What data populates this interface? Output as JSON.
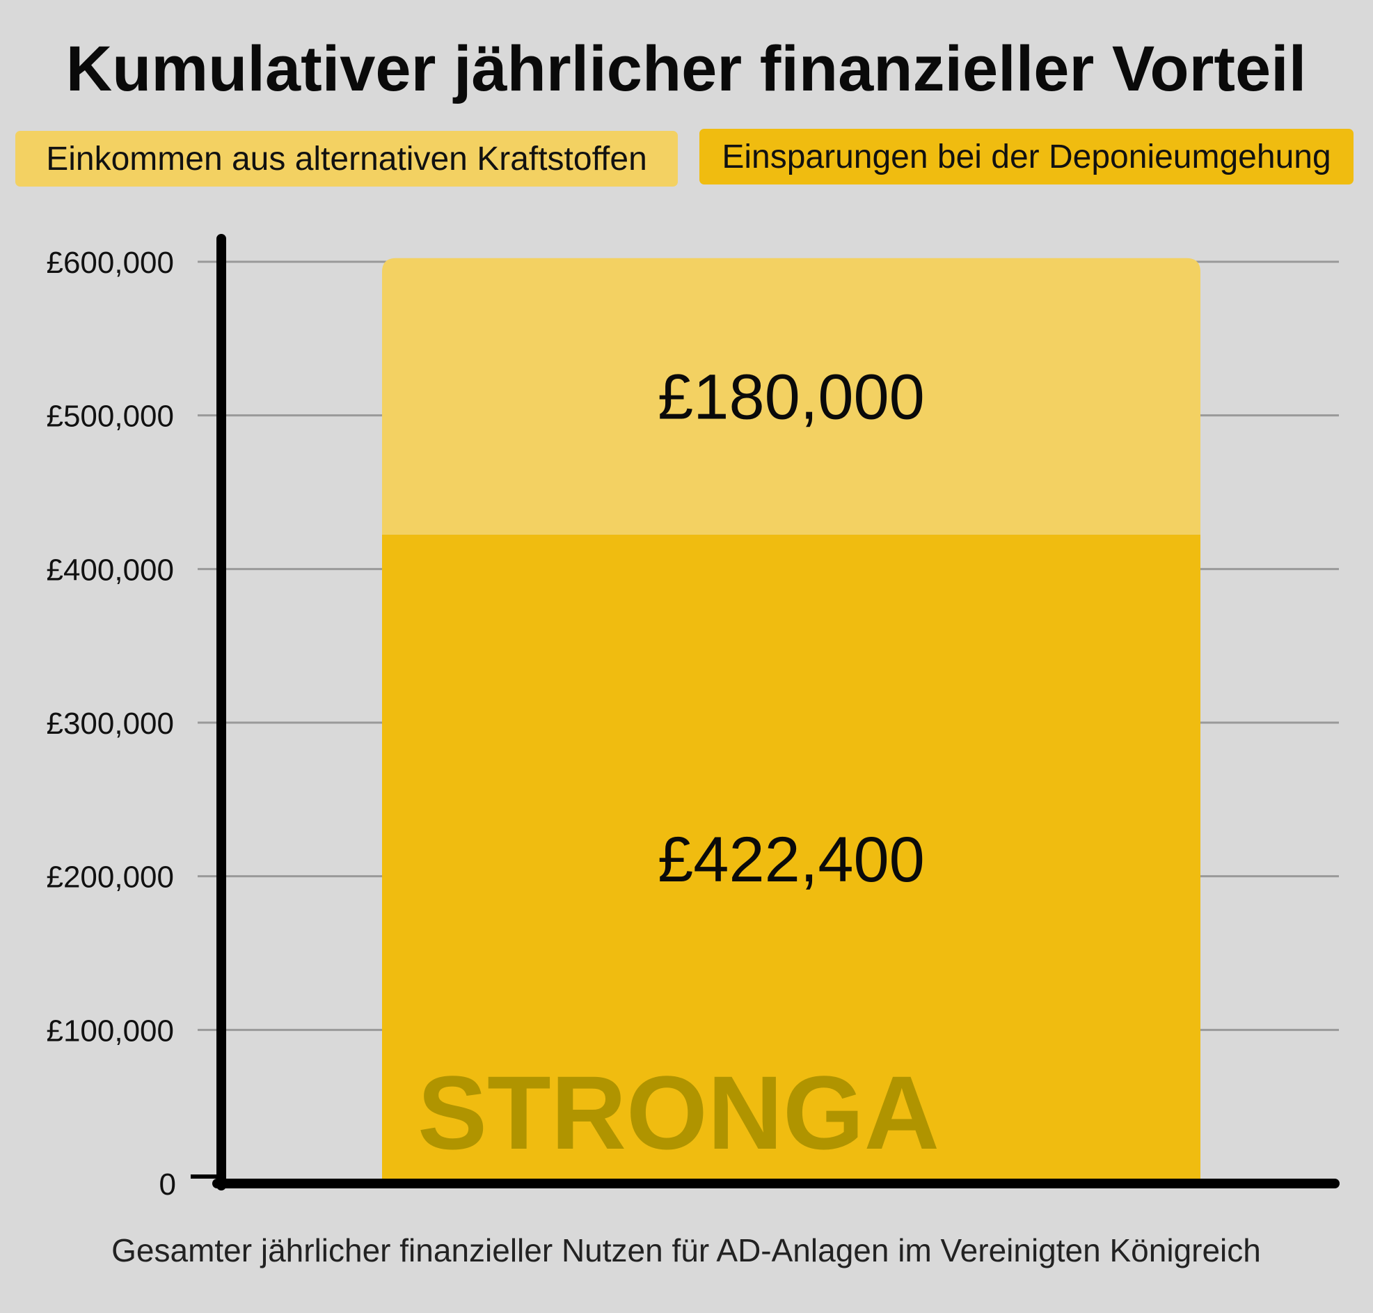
{
  "chart_data": {
    "type": "bar",
    "stacked": true,
    "title": "Kumulativer jährlicher finanzieller Vorteil",
    "xlabel": "Gesamter jährlicher finanzieller Nutzen für AD-Anlagen im Vereinigten Königreich",
    "ylabel": "",
    "ylim": [
      0,
      600000
    ],
    "grid": true,
    "legend_position": "top",
    "y_ticks": [
      {
        "value": 0,
        "label": "0"
      },
      {
        "value": 100000,
        "label": "£100,000"
      },
      {
        "value": 200000,
        "label": "£200,000"
      },
      {
        "value": 300000,
        "label": "£300,000"
      },
      {
        "value": 400000,
        "label": "£400,000"
      },
      {
        "value": 500000,
        "label": "£500,000"
      },
      {
        "value": 600000,
        "label": "£600,000"
      }
    ],
    "categories": [
      ""
    ],
    "series": [
      {
        "name": "Einsparungen bei der Deponieumgehung",
        "values": [
          422400
        ],
        "value_label": "£422,400",
        "color": "#f0bc10"
      },
      {
        "name": "Einkommen aus alternativen Kraftstoffen",
        "values": [
          180000
        ],
        "value_label": "£180,000",
        "color": "#f3d162"
      }
    ],
    "legend": [
      {
        "label": "Einkommen aus alternativen Kraftstoffen",
        "color": "#f3d162"
      },
      {
        "label": "Einsparungen bei der Deponieumgehung",
        "color": "#f0bc10"
      }
    ],
    "watermark": "STRONGA"
  },
  "colors": {
    "background": "#d9d9d9",
    "gridline": "#999999",
    "axis": "#000000",
    "watermark": "#b09400"
  }
}
